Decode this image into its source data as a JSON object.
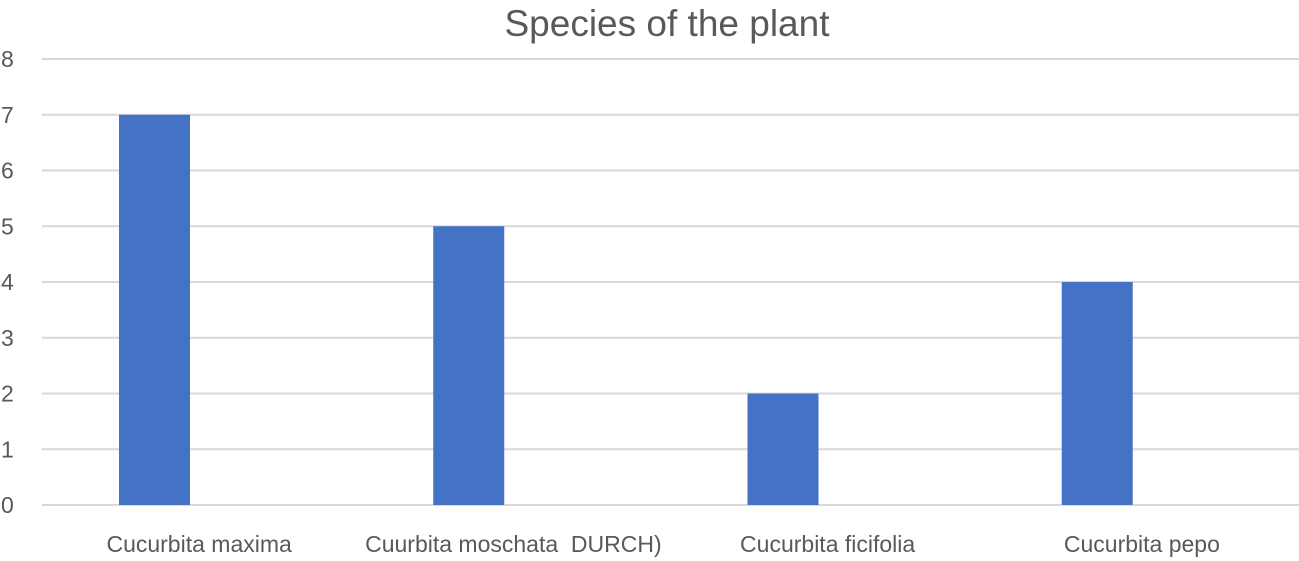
{
  "chart_data": {
    "type": "bar",
    "title": "Species of the plant",
    "categories": [
      "Cucurbita maxima",
      "Cuurbita moschata  DURCH)",
      "Cucurbita ficifolia",
      "Cucurbita pepo"
    ],
    "values": [
      7,
      5,
      2,
      4
    ],
    "ylim": [
      0,
      8
    ],
    "yticks": [
      "0",
      "1",
      "2",
      "3",
      "4",
      "5",
      "6",
      "7",
      "8"
    ],
    "grid": true,
    "legend": "none",
    "colors": {
      "bar": "#4472c4",
      "gridline": "#d9d9d9",
      "text": "#595959"
    }
  }
}
